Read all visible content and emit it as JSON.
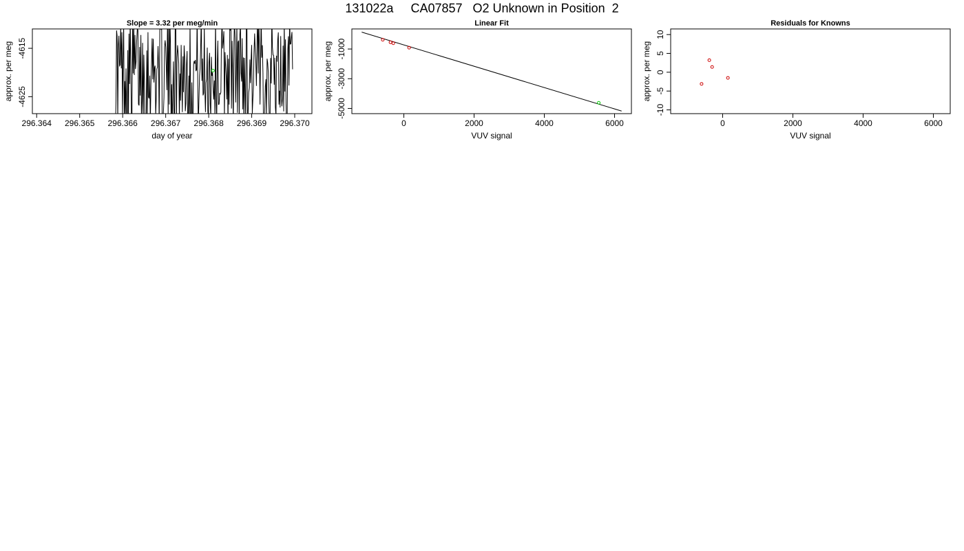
{
  "header": {
    "title": "131022a     CA07857   O2 Unknown in Position  2"
  },
  "colors": {
    "trace": "#000000",
    "known_points": "#cc0000",
    "unknown_point": "#00cc00",
    "fit_line": "#000000"
  },
  "chart_data": [
    {
      "type": "line",
      "title": "Slope =  3.32  per meg/min",
      "xlabel": "day of year",
      "ylabel": "approx. per meg",
      "xlim": [
        296.3639,
        296.3704
      ],
      "ylim": [
        -4628.5,
        -4611
      ],
      "xticks": [
        "296.364",
        "296.365",
        "296.366",
        "296.367",
        "296.368",
        "296.369",
        "296.370"
      ],
      "yticks": [
        "-4615",
        "-4625"
      ],
      "ytick_values": [
        -4615,
        -4625
      ],
      "trace": {
        "x_start": 296.36583,
        "x_end": 296.36995,
        "n_points": 300,
        "center": -4619.6,
        "amplitude": 12
      },
      "highlight_point": {
        "x": 296.3681,
        "y": -4619.6
      }
    },
    {
      "type": "scatter",
      "title": "Linear Fit",
      "xlabel": "VUV signal",
      "ylabel": "approx. per meg",
      "xlim": [
        -1480,
        6480
      ],
      "ylim": [
        -5350,
        350
      ],
      "xticks": [
        "0",
        "2000",
        "4000",
        "6000"
      ],
      "xtick_values": [
        0,
        2000,
        4000,
        6000
      ],
      "yticks": [
        "-1000",
        "-3000",
        "-5000"
      ],
      "ytick_values": [
        -1000,
        -3000,
        -5000
      ],
      "known_points": [
        {
          "x": -600,
          "y": -380
        },
        {
          "x": -380,
          "y": -550
        },
        {
          "x": -300,
          "y": -610
        },
        {
          "x": 150,
          "y": -910
        }
      ],
      "unknown_point": {
        "x": 5550,
        "y": -4620
      },
      "fit_line": {
        "x": [
          -1200,
          6200
        ],
        "y": [
          135,
          -5175
        ]
      }
    },
    {
      "type": "scatter",
      "title": "Residuals for Knowns",
      "xlabel": "VUV signal",
      "ylabel": "approx. per meg",
      "xlim": [
        -1480,
        6480
      ],
      "ylim": [
        -11,
        11.5
      ],
      "xticks": [
        "0",
        "2000",
        "4000",
        "6000"
      ],
      "xtick_values": [
        0,
        2000,
        4000,
        6000
      ],
      "yticks": [
        "-10",
        "-5",
        "0",
        "5",
        "10"
      ],
      "ytick_values": [
        -10,
        -5,
        0,
        5,
        10
      ],
      "points": [
        {
          "x": -600,
          "y": -3.1
        },
        {
          "x": -380,
          "y": 3.2
        },
        {
          "x": -300,
          "y": 1.4
        },
        {
          "x": 150,
          "y": -1.5
        }
      ]
    }
  ]
}
